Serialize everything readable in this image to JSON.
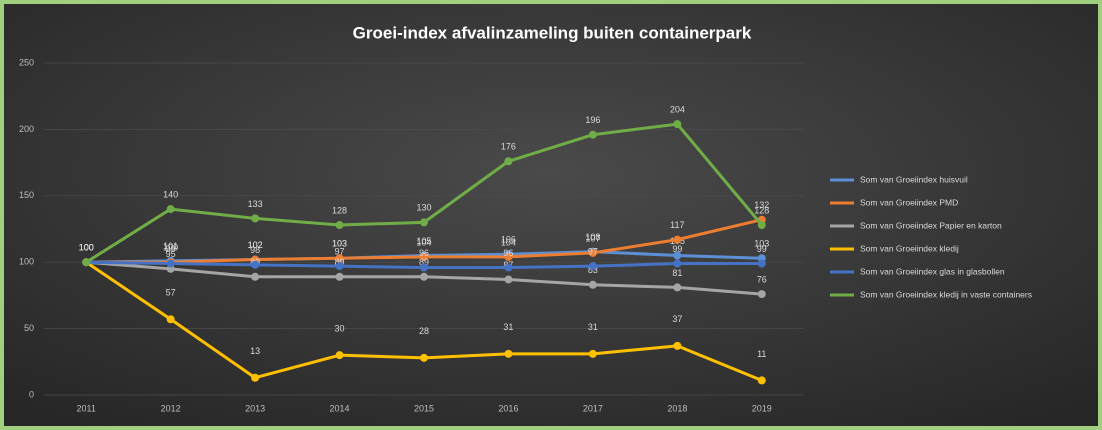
{
  "chart_data": {
    "type": "line",
    "title": "Groei-index afvalinzameling buiten containerpark",
    "categories": [
      "2011",
      "2012",
      "2013",
      "2014",
      "2015",
      "2016",
      "2017",
      "2018",
      "2019"
    ],
    "ylim": [
      0,
      250
    ],
    "yticks": [
      0,
      50,
      100,
      150,
      200,
      250
    ],
    "legend": "right",
    "series": [
      {
        "name": "Som van Groeiindex huisvuil",
        "color": "#5b8fd6",
        "values": [
          100,
          101,
          102,
          103,
          105,
          106,
          108,
          105,
          103
        ]
      },
      {
        "name": "Som van Groeiindex PMD",
        "color": "#ed7d31",
        "values": [
          100,
          100,
          102,
          103,
          104,
          104,
          107,
          117,
          132
        ]
      },
      {
        "name": "Som van Groeiindex Papier en karton",
        "color": "#a5a5a5",
        "values": [
          100,
          95,
          89,
          89,
          89,
          87,
          83,
          81,
          76
        ]
      },
      {
        "name": "Som van Groeiindex kledij",
        "color": "#ffc000",
        "values": [
          100,
          57,
          13,
          30,
          28,
          31,
          31,
          37,
          11
        ]
      },
      {
        "name": "Som van Groeiindex glas in glasbollen",
        "color": "#4472c4",
        "values": [
          100,
          99,
          98,
          97,
          96,
          96,
          97,
          99,
          99
        ]
      },
      {
        "name": "Som van Groeiindex kledij in vaste containers",
        "color": "#70ad47",
        "values": [
          100,
          140,
          133,
          128,
          130,
          176,
          196,
          204,
          128
        ]
      }
    ]
  }
}
